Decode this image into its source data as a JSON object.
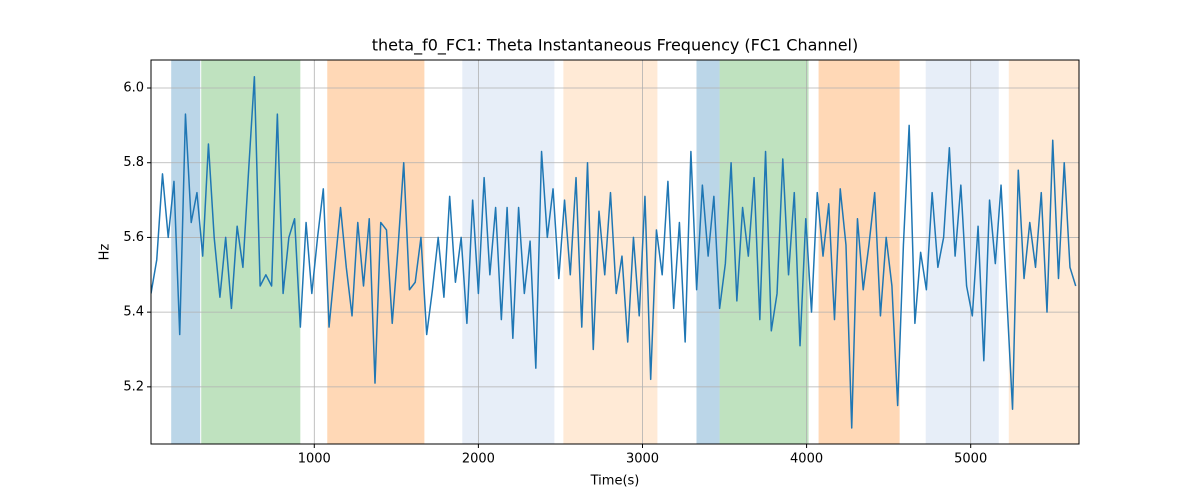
{
  "chart_data": {
    "type": "line",
    "title": "theta_f0_FC1: Theta Instantaneous Frequency (FC1 Channel)",
    "xlabel": "Time(s)",
    "ylabel": "Hz",
    "xlim": [
      5,
      5660
    ],
    "ylim": [
      5.047,
      6.075
    ],
    "xticks": [
      1000,
      2000,
      3000,
      4000,
      5000
    ],
    "yticks": [
      5.2,
      5.4,
      5.6,
      5.8,
      {
        "value": 6,
        "label": "6.0"
      }
    ],
    "grid": true,
    "spans": [
      {
        "x0": 128,
        "x1": 305,
        "color": "#1f77b4",
        "alpha": 0.3
      },
      {
        "x0": 311,
        "x1": 915,
        "color": "#2ca02c",
        "alpha": 0.3
      },
      {
        "x0": 1079,
        "x1": 1671,
        "color": "#ff7f0e",
        "alpha": 0.3
      },
      {
        "x0": 1902,
        "x1": 2463,
        "color": "#aec7e8",
        "alpha": 0.3
      },
      {
        "x0": 2518,
        "x1": 3091,
        "color": "#ffbb78",
        "alpha": 0.3
      },
      {
        "x0": 3329,
        "x1": 3470,
        "color": "#1f77b4",
        "alpha": 0.3
      },
      {
        "x0": 3470,
        "x1": 4012,
        "color": "#2ca02c",
        "alpha": 0.3
      },
      {
        "x0": 4073,
        "x1": 4567,
        "color": "#ff7f0e",
        "alpha": 0.3
      },
      {
        "x0": 4726,
        "x1": 5171,
        "color": "#aec7e8",
        "alpha": 0.3
      },
      {
        "x0": 5232,
        "x1": 5671,
        "color": "#ffbb78",
        "alpha": 0.3
      }
    ],
    "x": [
      5,
      40,
      75,
      110,
      145,
      180,
      215,
      250,
      285,
      320,
      355,
      390,
      425,
      460,
      495,
      530,
      565,
      600,
      635,
      670,
      705,
      740,
      775,
      810,
      845,
      880,
      915,
      950,
      985,
      1020,
      1055,
      1090,
      1125,
      1160,
      1195,
      1230,
      1265,
      1300,
      1335,
      1370,
      1405,
      1440,
      1475,
      1510,
      1545,
      1580,
      1615,
      1650,
      1685,
      1720,
      1755,
      1790,
      1825,
      1860,
      1895,
      1930,
      1965,
      2000,
      2035,
      2070,
      2105,
      2140,
      2175,
      2210,
      2245,
      2280,
      2315,
      2350,
      2385,
      2420,
      2455,
      2490,
      2525,
      2560,
      2595,
      2630,
      2665,
      2700,
      2735,
      2770,
      2805,
      2840,
      2875,
      2910,
      2945,
      2980,
      3015,
      3050,
      3085,
      3120,
      3155,
      3190,
      3225,
      3260,
      3295,
      3330,
      3365,
      3400,
      3435,
      3470,
      3505,
      3540,
      3575,
      3610,
      3645,
      3680,
      3715,
      3750,
      3785,
      3820,
      3855,
      3890,
      3925,
      3960,
      3995,
      4030,
      4065,
      4100,
      4135,
      4170,
      4205,
      4240,
      4275,
      4310,
      4345,
      4380,
      4415,
      4450,
      4485,
      4520,
      4555,
      4590,
      4625,
      4660,
      4695,
      4730,
      4765,
      4800,
      4835,
      4870,
      4905,
      4940,
      4975,
      5010,
      5045,
      5080,
      5115,
      5150,
      5185,
      5220,
      5255,
      5290,
      5325,
      5360,
      5395,
      5430,
      5465,
      5500,
      5535,
      5570,
      5605,
      5640
    ],
    "series": [
      {
        "color": "#1f77b4",
        "values": [
          5.45,
          5.54,
          5.77,
          5.6,
          5.75,
          5.34,
          5.93,
          5.64,
          5.72,
          5.55,
          5.85,
          5.6,
          5.44,
          5.6,
          5.41,
          5.63,
          5.52,
          5.78,
          6.03,
          5.47,
          5.5,
          5.47,
          5.93,
          5.45,
          5.6,
          5.65,
          5.36,
          5.64,
          5.45,
          5.6,
          5.73,
          5.36,
          5.52,
          5.68,
          5.52,
          5.39,
          5.64,
          5.47,
          5.65,
          5.21,
          5.64,
          5.62,
          5.37,
          5.57,
          5.8,
          5.46,
          5.48,
          5.6,
          5.34,
          5.46,
          5.6,
          5.44,
          5.71,
          5.48,
          5.6,
          5.37,
          5.7,
          5.45,
          5.76,
          5.5,
          5.68,
          5.38,
          5.68,
          5.33,
          5.68,
          5.45,
          5.59,
          5.25,
          5.83,
          5.6,
          5.73,
          5.49,
          5.7,
          5.5,
          5.76,
          5.36,
          5.8,
          5.3,
          5.67,
          5.5,
          5.72,
          5.45,
          5.55,
          5.32,
          5.6,
          5.39,
          5.71,
          5.22,
          5.62,
          5.5,
          5.75,
          5.41,
          5.64,
          5.32,
          5.83,
          5.46,
          5.74,
          5.55,
          5.71,
          5.41,
          5.53,
          5.8,
          5.43,
          5.68,
          5.55,
          5.76,
          5.38,
          5.83,
          5.35,
          5.45,
          5.81,
          5.5,
          5.72,
          5.31,
          5.65,
          5.4,
          5.72,
          5.55,
          5.69,
          5.38,
          5.73,
          5.58,
          5.09,
          5.65,
          5.46,
          5.58,
          5.72,
          5.39,
          5.6,
          5.47,
          5.15,
          5.58,
          5.9,
          5.37,
          5.56,
          5.46,
          5.72,
          5.52,
          5.6,
          5.84,
          5.55,
          5.74,
          5.47,
          5.39,
          5.63,
          5.27,
          5.7,
          5.53,
          5.74,
          5.44,
          5.14,
          5.78,
          5.49,
          5.64,
          5.52,
          5.72,
          5.4,
          5.86,
          5.49,
          5.8,
          5.52,
          5.47
        ]
      }
    ]
  }
}
